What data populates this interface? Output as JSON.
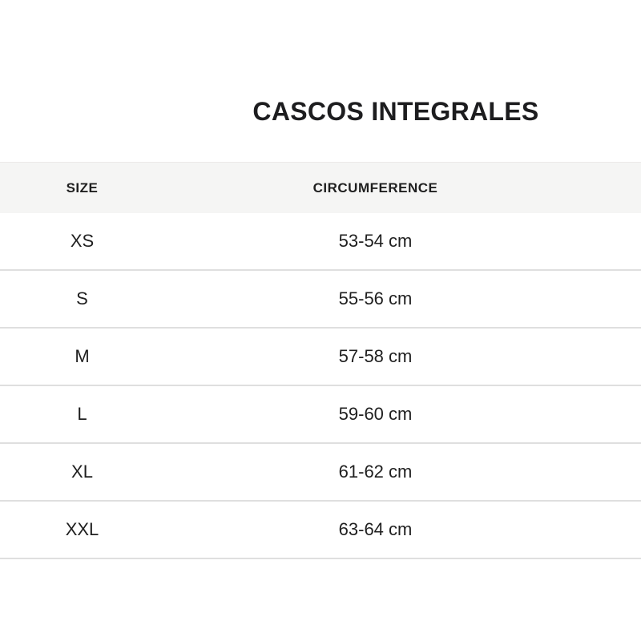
{
  "title": "CASCOS INTEGRALES",
  "table": {
    "headers": {
      "size": "SIZE",
      "circumference": "CIRCUMFERENCE"
    },
    "rows": [
      {
        "size": "XS",
        "circumference": "53-54 cm"
      },
      {
        "size": "S",
        "circumference": "55-56 cm"
      },
      {
        "size": "M",
        "circumference": "57-58 cm"
      },
      {
        "size": "L",
        "circumference": "59-60 cm"
      },
      {
        "size": "XL",
        "circumference": "61-62 cm"
      },
      {
        "size": "XXL",
        "circumference": "63-64 cm"
      }
    ]
  },
  "colors": {
    "title_text": "#1d1d1f",
    "body_text": "#1f1f1f",
    "header_band": "#f5f5f4",
    "row_separator": "#dfdfdf"
  }
}
